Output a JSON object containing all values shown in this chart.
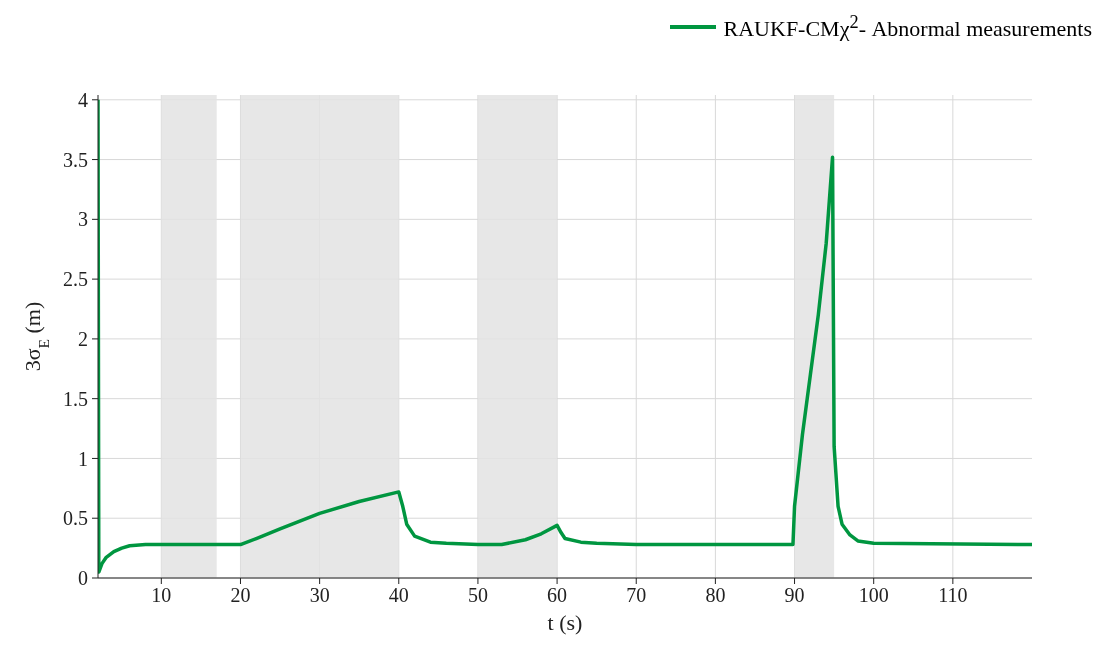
{
  "chart_data": {
    "type": "line",
    "xlabel": "t (s)",
    "ylabel": "3σ$_{E}$ (m)",
    "xlim": [
      2,
      120
    ],
    "ylim": [
      0,
      4.04
    ],
    "xticks": [
      10,
      20,
      30,
      40,
      50,
      60,
      70,
      80,
      90,
      100,
      110
    ],
    "yticks": [
      0,
      0.5,
      1,
      1.5,
      2,
      2.5,
      3,
      3.5,
      4
    ],
    "grid": true,
    "legend": "top right",
    "marker": "none",
    "line_style": "solid",
    "bands": [
      {
        "axis": "x",
        "from": 10,
        "to": 17,
        "color": "#e3e3e3"
      },
      {
        "axis": "x",
        "from": 20,
        "to": 40,
        "color": "#e3e3e3"
      },
      {
        "axis": "x",
        "from": 50,
        "to": 60,
        "color": "#e3e3e3"
      },
      {
        "axis": "x",
        "from": 90,
        "to": 95,
        "color": "#e3e3e3"
      }
    ],
    "series": [
      {
        "name": "RAUKF-CMχ$^{2}$- Abnormal measurements",
        "color": "#009640",
        "x": [
          2,
          2.1,
          2.5,
          3,
          4,
          5,
          6,
          8,
          20,
          22,
          25,
          30,
          35,
          40,
          40.5,
          41,
          42,
          44,
          46,
          50,
          53,
          56,
          58,
          60,
          60.5,
          61,
          63,
          65,
          70,
          89.8,
          90,
          91,
          92,
          93,
          94,
          94.8,
          95,
          95.5,
          96,
          97,
          98,
          100,
          120
        ],
        "values": [
          4.0,
          0.05,
          0.12,
          0.17,
          0.22,
          0.25,
          0.27,
          0.28,
          0.28,
          0.33,
          0.41,
          0.54,
          0.64,
          0.72,
          0.6,
          0.45,
          0.35,
          0.3,
          0.29,
          0.28,
          0.28,
          0.32,
          0.37,
          0.44,
          0.38,
          0.33,
          0.3,
          0.29,
          0.28,
          0.28,
          0.6,
          1.2,
          1.7,
          2.2,
          2.8,
          3.52,
          1.1,
          0.6,
          0.45,
          0.36,
          0.31,
          0.29,
          0.28
        ]
      }
    ]
  }
}
